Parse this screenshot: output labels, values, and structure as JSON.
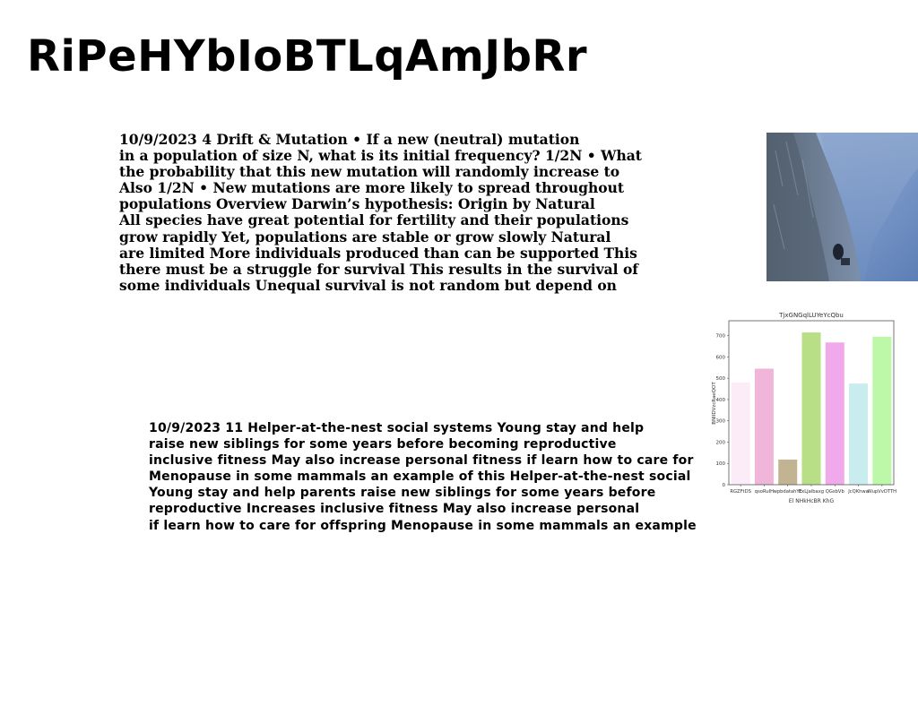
{
  "page": {
    "title": "RiPeHYbIoBTLqAmJbRr"
  },
  "text_block_1": {
    "lines": [
      "10/9/2023 4 Drift & Mutation • If a new (neutral) mutation",
      "in a population of size N, what is its initial frequency? 1/2N • What",
      "the probability that this new mutation will randomly increase to",
      "Also 1/2N • New mutations are more likely to spread throughout",
      "populations Overview Darwin’s hypothesis: Origin by Natural",
      "All species have great potential for fertility and their populations",
      "grow rapidly Yet, populations are stable or grow slowly Natural",
      "are limited More individuals produced than can be supported This",
      "there must be a struggle for survival This results in the survival of",
      "some individuals Unequal survival is not random but depend on"
    ]
  },
  "text_block_2": {
    "lines": [
      "10/9/2023 11 Helper-at-the-nest social systems Young stay and help",
      "raise new siblings for some years before becoming reproductive",
      "inclusive fitness May also increase personal fitness if learn how to care for",
      "Menopause in some mammals an example of this Helper-at-the-nest social",
      "Young stay and help parents raise new siblings for some years before",
      "reproductive Increases inclusive fitness May also increase personal",
      "if learn how to care for offspring Menopause in some mammals an example"
    ]
  },
  "photo": {
    "icon": "mountain-cliff-photo"
  },
  "chart_data": {
    "type": "bar",
    "title": "TjxGNGqlLUYeYcQbu",
    "xlabel": "El NHkHcBR KhG",
    "ylabel": "BNIIDVzcRaeQOT",
    "categories": [
      "RGZFtDS",
      "qsoRuIH",
      "wpbdatahYE",
      "ExLJalbaxg",
      "QGsbVb",
      "JcQKhwa",
      "WupVvOTTH"
    ],
    "values": [
      480,
      545,
      118,
      715,
      668,
      475,
      695
    ],
    "colors": [
      "#fcecf8",
      "#f0b6da",
      "#c2b493",
      "#b8de86",
      "#f0a9ea",
      "#c9ecef",
      "#bdf7a8"
    ],
    "ylim": [
      0,
      770
    ],
    "yticks": [
      0,
      100,
      200,
      300,
      400,
      500,
      600,
      700
    ],
    "grid": false,
    "legend": "none"
  }
}
